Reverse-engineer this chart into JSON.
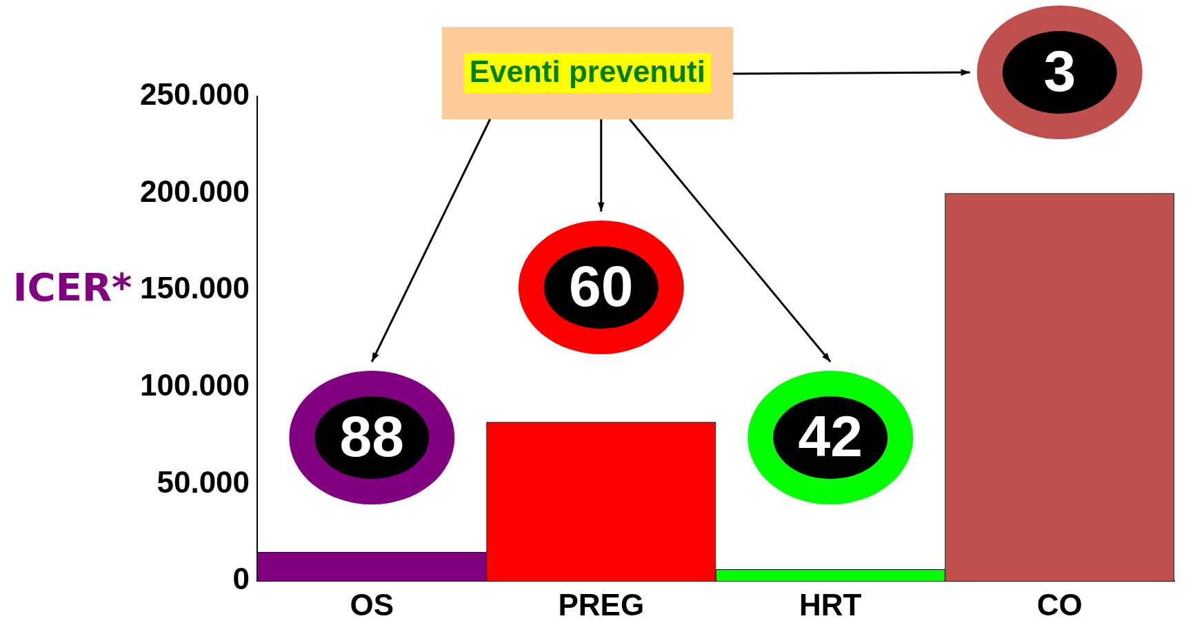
{
  "chart_data": {
    "type": "bar",
    "ylabel": "ICER*",
    "categories": [
      "OS",
      "PREG",
      "HRT",
      "CO"
    ],
    "values": [
      15000,
      82000,
      6000,
      200000
    ],
    "colors": [
      "#800080",
      "#ff0000",
      "#00ff00",
      "#c0504d"
    ],
    "ylim": [
      0,
      250000
    ],
    "yticks": [
      {
        "value": 0,
        "label": "0"
      },
      {
        "value": 50000,
        "label": "50.000"
      },
      {
        "value": 100000,
        "label": "100.000"
      },
      {
        "value": 150000,
        "label": "150.000"
      },
      {
        "value": 200000,
        "label": "200.000"
      },
      {
        "value": 250000,
        "label": "250.000"
      }
    ],
    "grid": false,
    "legend": false,
    "annotations": [
      "Eventi prevenuti",
      "88",
      "60",
      "42",
      "3"
    ]
  }
}
